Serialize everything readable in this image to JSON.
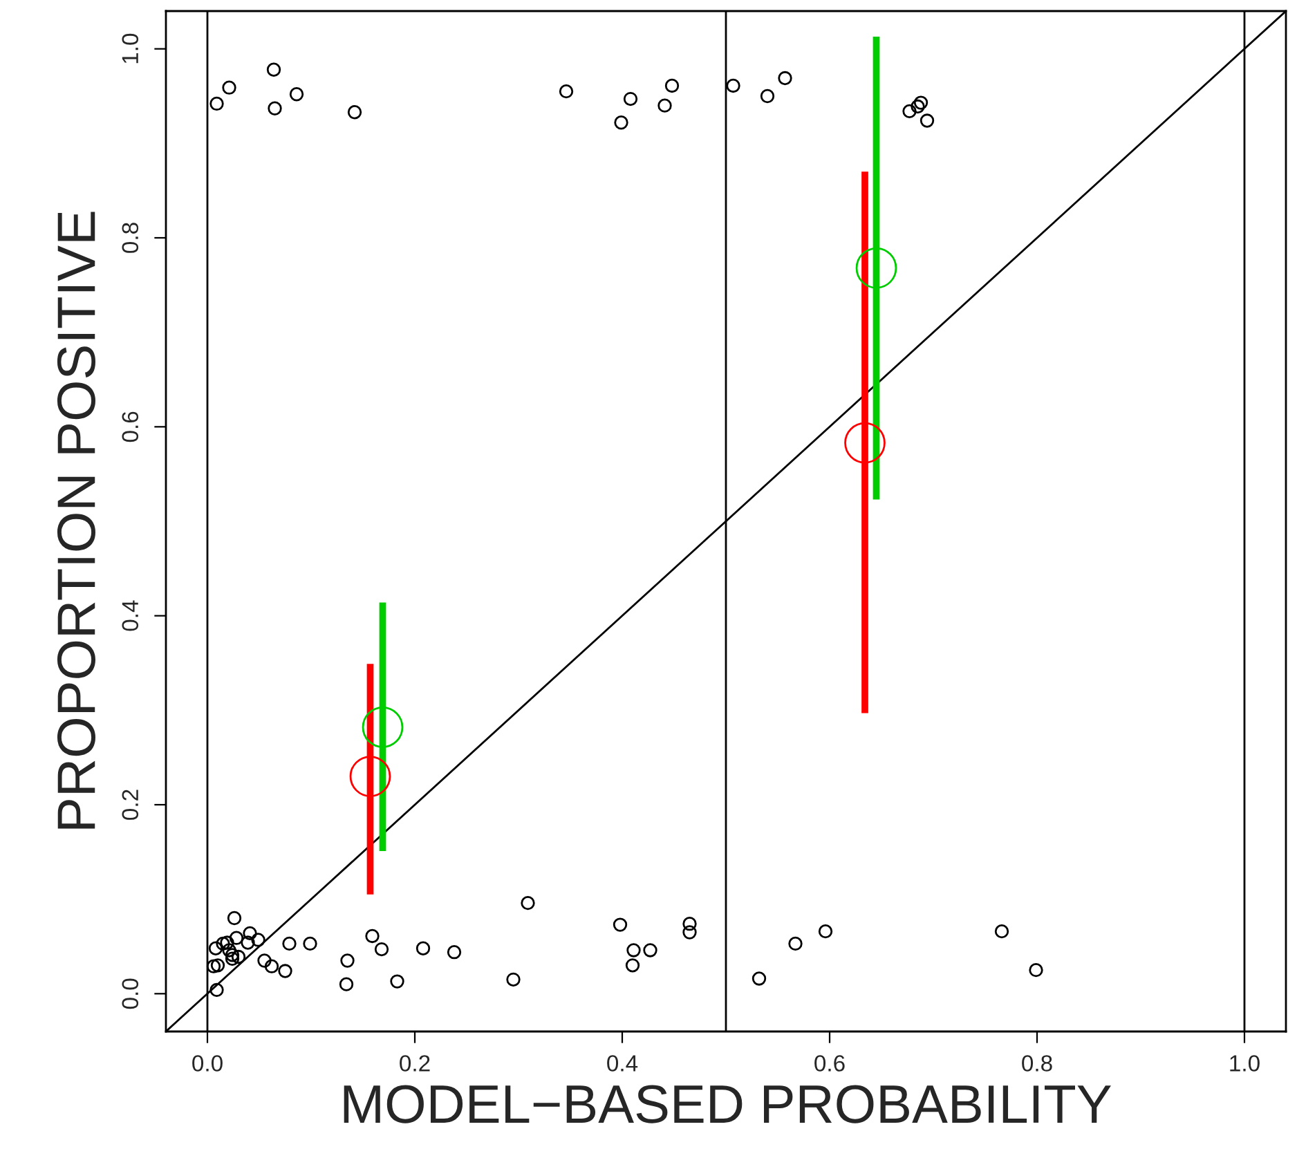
{
  "chart_data": {
    "type": "scatter",
    "xlabel": "MODEL−BASED PROBABILITY",
    "ylabel": "PROPORTION POSITIVE",
    "xlim": [
      -0.04,
      1.04
    ],
    "ylim": [
      -0.04,
      1.04
    ],
    "xticks": [
      {
        "value": 0,
        "label": "0.0"
      },
      {
        "value": 0.2,
        "label": "0.2"
      },
      {
        "value": 0.4,
        "label": "0.4"
      },
      {
        "value": 0.6,
        "label": "0.6"
      },
      {
        "value": 0.8,
        "label": "0.8"
      },
      {
        "value": 1,
        "label": "1.0"
      }
    ],
    "yticks": [
      {
        "value": 0,
        "label": "0.0"
      },
      {
        "value": 0.2,
        "label": "0.2"
      },
      {
        "value": 0.4,
        "label": "0.4"
      },
      {
        "value": 0.6,
        "label": "0.6"
      },
      {
        "value": 0.8,
        "label": "0.8"
      },
      {
        "value": 1,
        "label": "1.0"
      }
    ],
    "grid": false,
    "legend": false,
    "ref_lines": [
      {
        "axis": "x",
        "value": 0,
        "color": "#000000"
      },
      {
        "axis": "x",
        "value": 0.5,
        "color": "#000000"
      },
      {
        "axis": "x",
        "value": 1,
        "color": "#000000"
      }
    ],
    "series": [
      {
        "color": "#000000",
        "marker": "circle",
        "x": [
          0.009,
          0.021,
          0.064,
          0.065,
          0.086,
          0.142,
          0.346,
          0.408,
          0.399,
          0.441,
          0.448,
          0.507,
          0.54,
          0.557,
          0.677,
          0.685,
          0.688,
          0.694,
          0.026,
          0.008,
          0.015,
          0.019,
          0.021,
          0.024,
          0.03,
          0.028,
          0.041,
          0.039,
          0.049,
          0.006,
          0.01,
          0.024,
          0.009,
          0.055,
          0.062,
          0.075,
          0.079,
          0.099,
          0.135,
          0.134,
          0.159,
          0.168,
          0.183,
          0.208,
          0.238,
          0.295,
          0.309,
          0.398,
          0.411,
          0.41,
          0.427,
          0.465,
          0.465,
          0.532,
          0.567,
          0.596,
          0.766,
          0.799
        ],
        "values": [
          0.942,
          0.959,
          0.978,
          0.937,
          0.952,
          0.933,
          0.955,
          0.947,
          0.922,
          0.94,
          0.961,
          0.961,
          0.95,
          0.969,
          0.934,
          0.939,
          0.943,
          0.924,
          0.08,
          0.048,
          0.053,
          0.054,
          0.046,
          0.041,
          0.039,
          0.059,
          0.064,
          0.054,
          0.057,
          0.029,
          0.03,
          0.037,
          0.004,
          0.035,
          0.029,
          0.024,
          0.053,
          0.053,
          0.035,
          0.01,
          0.061,
          0.047,
          0.013,
          0.048,
          0.044,
          0.015,
          0.096,
          0.073,
          0.046,
          0.03,
          0.046,
          0.074,
          0.065,
          0.016,
          0.053,
          0.066,
          0.066,
          0.025
        ]
      },
      {
        "color": "#ff0000",
        "marker": "circle",
        "x": [
          0.157,
          0.634
        ],
        "values": [
          0.23,
          0.583
        ],
        "errors": [
          [
            0.105,
            0.349
          ],
          [
            0.297,
            0.87
          ]
        ]
      },
      {
        "color": "#00cd00",
        "marker": "circle",
        "x": [
          0.169,
          0.645
        ],
        "values": [
          0.282,
          0.768
        ],
        "errors": [
          [
            0.151,
            0.414
          ],
          [
            0.523,
            1.013
          ]
        ]
      },
      {
        "type": "line",
        "color": "#000000",
        "x": [
          -0.04,
          1.04
        ],
        "values": [
          -0.04,
          1.04
        ]
      }
    ]
  }
}
